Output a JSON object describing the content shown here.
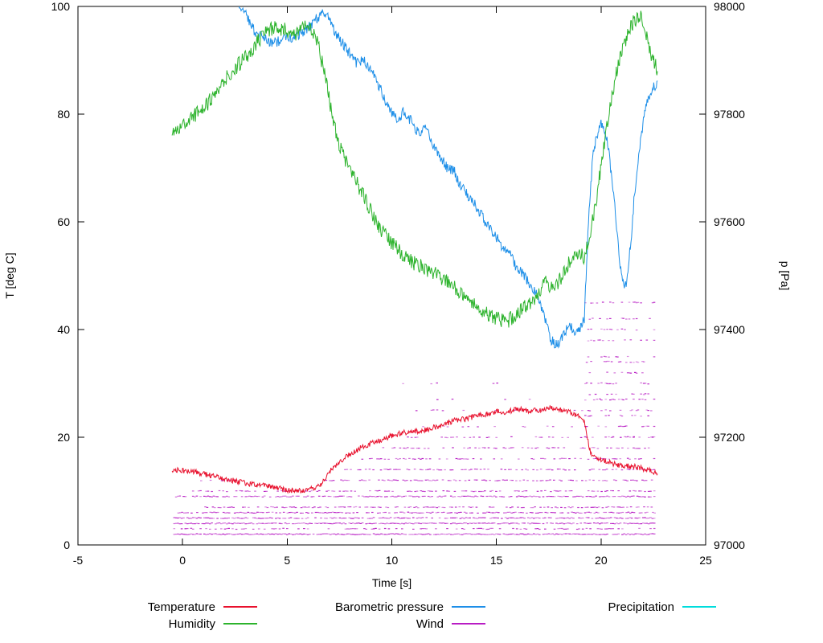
{
  "chart_data": {
    "type": "line",
    "title": "",
    "xlabel": "Time [s]",
    "ylabel_left": "T [deg C]",
    "ylabel_right": "p [Pa]",
    "x_range": [
      -5,
      25
    ],
    "y_left_range": [
      0,
      100
    ],
    "y_right_range": [
      97000,
      98000
    ],
    "x_ticks": [
      -5,
      0,
      5,
      10,
      15,
      20,
      25
    ],
    "y_left_ticks": [
      0,
      20,
      40,
      60,
      80,
      100
    ],
    "y_right_ticks": [
      97000,
      97200,
      97400,
      97600,
      97800,
      98000
    ],
    "frame_color": "#000000",
    "series": [
      {
        "name": "Temperature",
        "axis": "left",
        "color": "#e8112d",
        "noise": 0.5,
        "x": [
          -0.5,
          0,
          0.5,
          1,
          1.5,
          2,
          2.5,
          3,
          3.5,
          4,
          4.5,
          5,
          5.5,
          6,
          6.3,
          6.6,
          7,
          7.5,
          8,
          8.5,
          9,
          9.5,
          10,
          10.5,
          11,
          11.5,
          12,
          12.5,
          13,
          13.5,
          14,
          14.5,
          15,
          15.5,
          16,
          16.5,
          17,
          17.5,
          18,
          18.5,
          19,
          19.2,
          19.35,
          19.5,
          20,
          20.5,
          21,
          21.5,
          22,
          22.4,
          22.7
        ],
        "y": [
          14,
          13.8,
          13.6,
          13.2,
          12.8,
          12.3,
          11.9,
          11.5,
          11.2,
          11,
          10.6,
          10.1,
          10,
          10.3,
          10.6,
          11.3,
          13.5,
          15.5,
          16.8,
          18,
          18.8,
          19.5,
          20.3,
          20.8,
          21,
          21.3,
          21.8,
          22.3,
          23.2,
          23.4,
          23.9,
          24.3,
          24.8,
          24.7,
          25.3,
          24.9,
          25,
          25.4,
          25.1,
          24.6,
          23.8,
          23.2,
          20,
          17,
          15.8,
          15.2,
          14.7,
          14.6,
          14.2,
          13.8,
          13.2
        ]
      },
      {
        "name": "Humidity",
        "axis": "left",
        "color": "#2db32d",
        "noise": 1.4,
        "x": [
          -0.5,
          0,
          0.5,
          1,
          1.5,
          2,
          2.5,
          3,
          3.5,
          4,
          4.5,
          5,
          5.5,
          6,
          6.4,
          6.7,
          7,
          7.3,
          7.6,
          8,
          8.5,
          9,
          9.5,
          10,
          10.5,
          11,
          11.5,
          12,
          12.5,
          13,
          13.5,
          14,
          14.5,
          15,
          15.5,
          16,
          16.5,
          17,
          17.3,
          17.6,
          18,
          18.3,
          18.6,
          19,
          19.2,
          19.5,
          19.8,
          20.1,
          20.4,
          20.7,
          21,
          21.3,
          21.6,
          21.9,
          22.1,
          22.4,
          22.7
        ],
        "y": [
          76,
          78,
          79.5,
          81,
          83.5,
          86.5,
          88.5,
          90.5,
          93,
          95.5,
          96,
          95.5,
          95,
          96.5,
          94,
          89,
          83,
          77,
          73,
          69.5,
          66,
          62,
          58.5,
          56,
          54,
          52.5,
          51.5,
          50.5,
          49,
          48,
          46,
          44.5,
          43,
          42,
          41.5,
          43,
          44.5,
          46.5,
          49.5,
          47.5,
          49,
          51.5,
          53,
          54.5,
          53,
          58,
          65,
          73,
          81,
          87,
          92,
          95,
          97.5,
          98.5,
          96,
          91,
          88
        ]
      },
      {
        "name": "Barometric pressure",
        "axis": "right",
        "color": "#1e8fe8",
        "noise": 10,
        "x": [
          2.65,
          3,
          3.3,
          3.6,
          4,
          4.3,
          4.6,
          5,
          5.3,
          5.6,
          6,
          6.3,
          6.6,
          6.8,
          7,
          7.3,
          7.6,
          8,
          8.3,
          8.6,
          9,
          9.3,
          9.6,
          10,
          10.3,
          10.6,
          11,
          11.3,
          11.6,
          12,
          12.3,
          12.6,
          13,
          13.3,
          13.6,
          14,
          14.3,
          14.6,
          15,
          15.3,
          15.6,
          16,
          16.3,
          16.6,
          17,
          17.3,
          17.6,
          17.8,
          18,
          18.2,
          18.5,
          18.8,
          19,
          19.2,
          19.4,
          19.6,
          19.8,
          20,
          20.2,
          20.4,
          20.6,
          20.8,
          21,
          21.2,
          21.4,
          21.6,
          21.8,
          22,
          22.2,
          22.4,
          22.7
        ],
        "y": [
          98005,
          97985,
          97962,
          97948,
          97940,
          97932,
          97936,
          97941,
          97944,
          97950,
          97961,
          97972,
          97986,
          97990,
          97976,
          97952,
          97934,
          97912,
          97896,
          97902,
          97880,
          97862,
          97832,
          97802,
          97792,
          97806,
          97782,
          97762,
          97772,
          97742,
          97722,
          97702,
          97692,
          97664,
          97652,
          97632,
          97612,
          97592,
          97572,
          97552,
          97542,
          97512,
          97502,
          97482,
          97462,
          97422,
          97382,
          97372,
          97376,
          97390,
          97410,
          97396,
          97400,
          97420,
          97600,
          97720,
          97762,
          97782,
          97772,
          97722,
          97652,
          97562,
          97492,
          97482,
          97552,
          97652,
          97722,
          97782,
          97822,
          97842,
          97862
        ]
      },
      {
        "name": "Wind",
        "axis": "left",
        "color": "#b81cc4",
        "levels": [
          {
            "y": 2,
            "from": -0.4,
            "to": 22.6,
            "density": 0.95
          },
          {
            "y": 3,
            "from": -0.4,
            "to": 22.6,
            "density": 0.45
          },
          {
            "y": 4,
            "from": -0.4,
            "to": 22.6,
            "density": 0.9
          },
          {
            "y": 5,
            "from": -0.4,
            "to": 22.6,
            "density": 0.8
          },
          {
            "y": 6,
            "from": -0.2,
            "to": 22.6,
            "density": 0.7
          },
          {
            "y": 7,
            "from": 1,
            "to": 22.6,
            "density": 0.55
          },
          {
            "y": 9,
            "from": -0.4,
            "to": 22.6,
            "density": 0.75
          },
          {
            "y": 10,
            "from": 0.5,
            "to": 22.6,
            "density": 0.5
          },
          {
            "y": 12,
            "from": 0.8,
            "to": 2.6,
            "density": 0.25
          },
          {
            "y": 12,
            "from": 6.5,
            "to": 22.6,
            "density": 0.55
          },
          {
            "y": 14,
            "from": 7.5,
            "to": 22.6,
            "density": 0.5
          },
          {
            "y": 16,
            "from": 8.5,
            "to": 22.6,
            "density": 0.45
          },
          {
            "y": 18,
            "from": 9.5,
            "to": 22.6,
            "density": 0.4
          },
          {
            "y": 20,
            "from": 10.5,
            "to": 22.5,
            "density": 0.3
          },
          {
            "y": 22,
            "from": 11.5,
            "to": 19.2,
            "density": 0.15
          },
          {
            "y": 25,
            "from": 11,
            "to": 19.2,
            "density": 0.12
          },
          {
            "y": 27,
            "from": 12,
            "to": 17,
            "density": 0.06
          },
          {
            "y": 30,
            "from": 10,
            "to": 16.5,
            "density": 0.05
          }
        ],
        "burst": {
          "from": 19.25,
          "to": 22.6,
          "levels": [
            20,
            22,
            24,
            25,
            27,
            28,
            30,
            32,
            34,
            35,
            38,
            40,
            42,
            45
          ],
          "density": 0.3
        }
      },
      {
        "name": "Precipitation",
        "axis": "left",
        "color": "#00dcdc",
        "noise": 0,
        "x": [],
        "y": []
      }
    ],
    "legend": {
      "position": "bottom",
      "entries": [
        {
          "label": "Temperature",
          "col": 1,
          "row": 1
        },
        {
          "label": "Humidity",
          "col": 1,
          "row": 2
        },
        {
          "label": "Barometric pressure",
          "col": 2,
          "row": 1
        },
        {
          "label": "Wind",
          "col": 2,
          "row": 2
        },
        {
          "label": "Precipitation",
          "col": 3,
          "row": 1
        }
      ]
    }
  }
}
